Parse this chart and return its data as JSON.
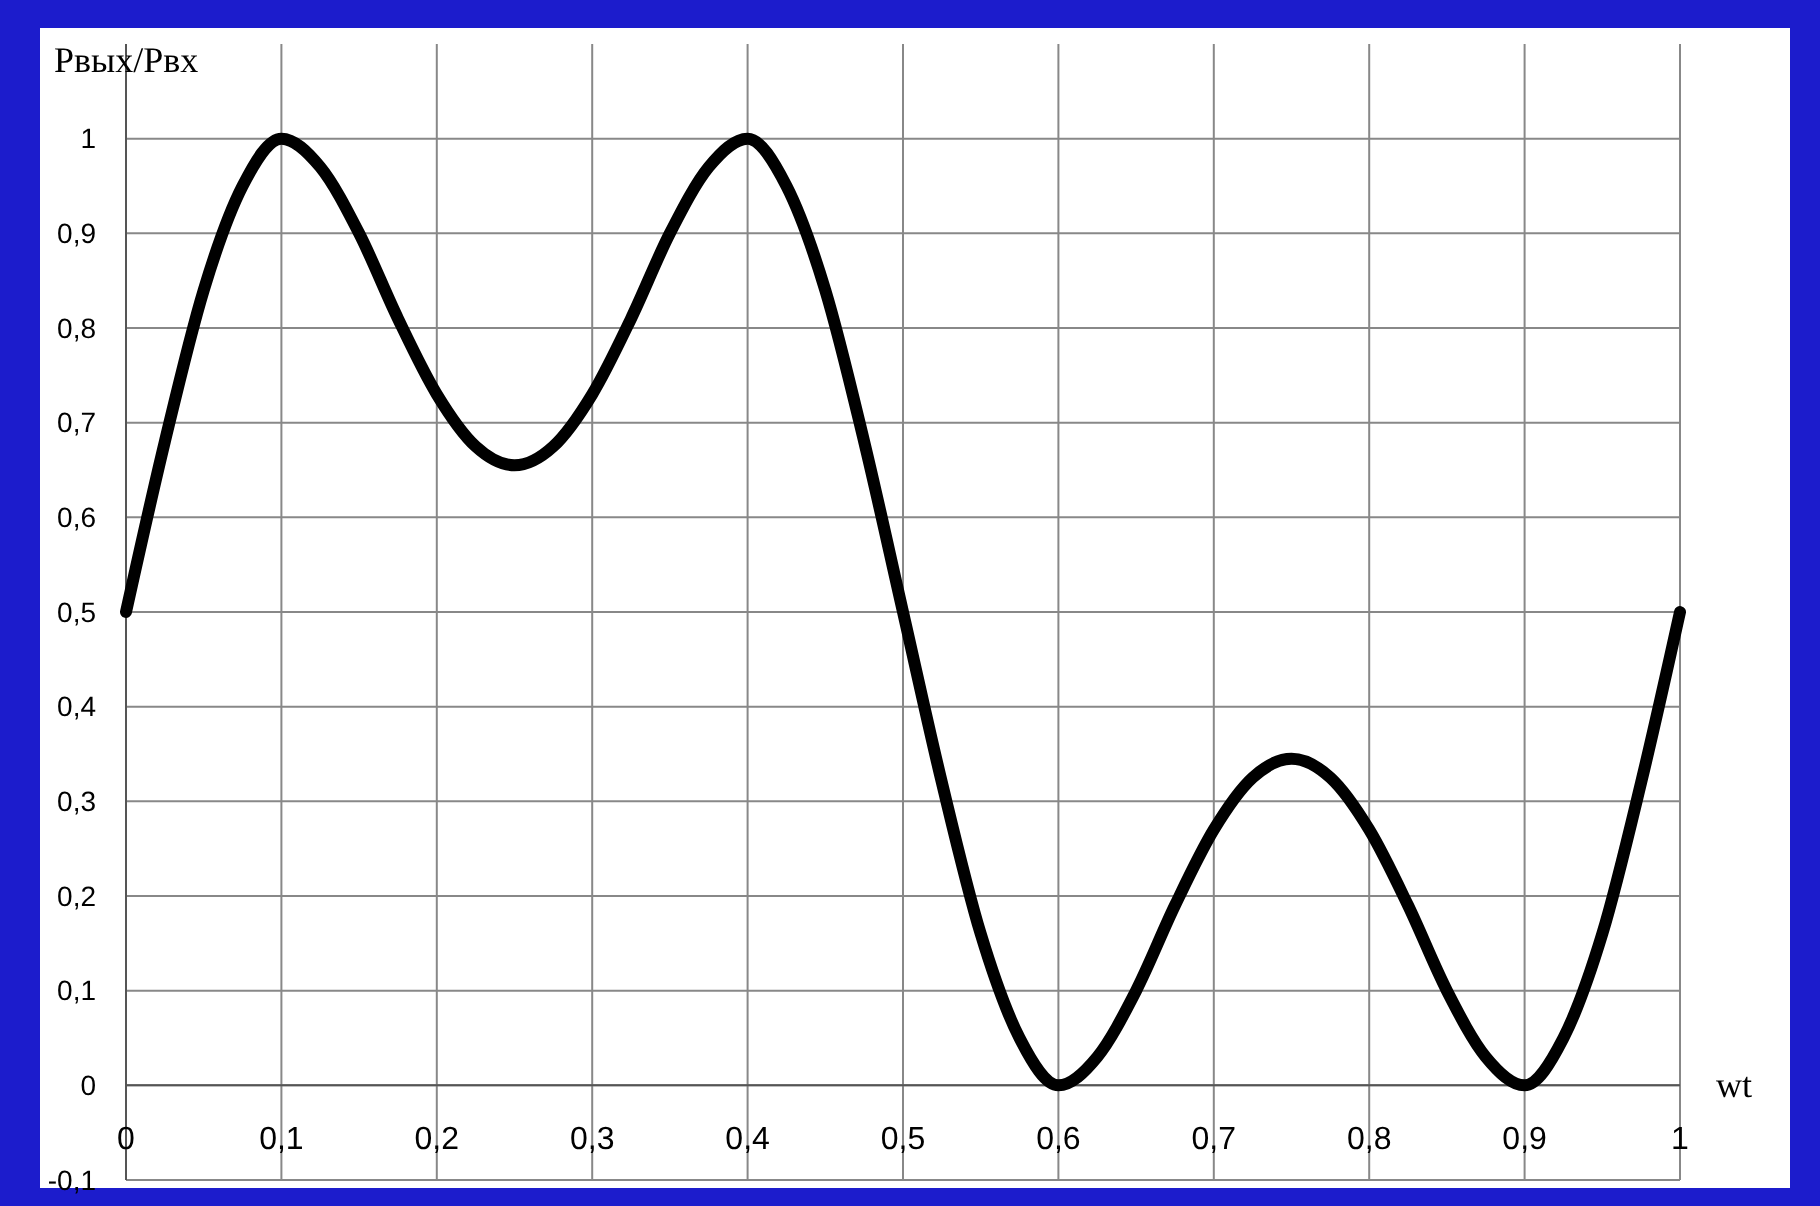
{
  "chart_data": {
    "type": "line",
    "xlabel": "wt",
    "ylabel": "Pвых/Pвх",
    "x": [
      0,
      0.025,
      0.05,
      0.075,
      0.1,
      0.125,
      0.15,
      0.175,
      0.2,
      0.225,
      0.25,
      0.275,
      0.3,
      0.325,
      0.35,
      0.375,
      0.4,
      0.425,
      0.45,
      0.475,
      0.5,
      0.525,
      0.55,
      0.575,
      0.6,
      0.625,
      0.65,
      0.675,
      0.7,
      0.725,
      0.75,
      0.775,
      0.8,
      0.825,
      0.85,
      0.875,
      0.9,
      0.925,
      0.95,
      0.975,
      1
    ],
    "series": [
      {
        "color": "#000000",
        "values": [
          0.5,
          0.68,
          0.84,
          0.95,
          1.0,
          0.97,
          0.9,
          0.81,
          0.73,
          0.675,
          0.655,
          0.675,
          0.73,
          0.81,
          0.9,
          0.97,
          1.0,
          0.95,
          0.84,
          0.68,
          0.5,
          0.32,
          0.16,
          0.05,
          0.0,
          0.03,
          0.1,
          0.19,
          0.27,
          0.325,
          0.345,
          0.325,
          0.27,
          0.19,
          0.1,
          0.03,
          0.0,
          0.05,
          0.16,
          0.32,
          0.5
        ]
      }
    ],
    "xlim": [
      0,
      1
    ],
    "xticks": [
      0,
      {
        "value": 0.1,
        "label": "0,1"
      },
      {
        "value": 0.2,
        "label": "0,2"
      },
      {
        "value": 0.3,
        "label": "0,3"
      },
      {
        "value": 0.4,
        "label": "0,4"
      },
      {
        "value": 0.5,
        "label": "0,5"
      },
      {
        "value": 0.6,
        "label": "0,6"
      },
      {
        "value": 0.7,
        "label": "0,7"
      },
      {
        "value": 0.8,
        "label": "0,8"
      },
      {
        "value": 0.9,
        "label": "0,9"
      },
      1
    ],
    "ylim": [
      -0.1,
      1.1
    ],
    "yticks": [
      {
        "value": -0.1,
        "label": "-0,1"
      },
      0,
      {
        "value": 0.1,
        "label": "0,1"
      },
      {
        "value": 0.2,
        "label": "0,2"
      },
      {
        "value": 0.3,
        "label": "0,3"
      },
      {
        "value": 0.4,
        "label": "0,4"
      },
      {
        "value": 0.5,
        "label": "0,5"
      },
      {
        "value": 0.6,
        "label": "0,6"
      },
      {
        "value": 0.7,
        "label": "0,7"
      },
      {
        "value": 0.8,
        "label": "0,8"
      },
      {
        "value": 0.9,
        "label": "0,9"
      },
      1
    ],
    "grid": true,
    "marker": "none",
    "line_style": "solid"
  }
}
